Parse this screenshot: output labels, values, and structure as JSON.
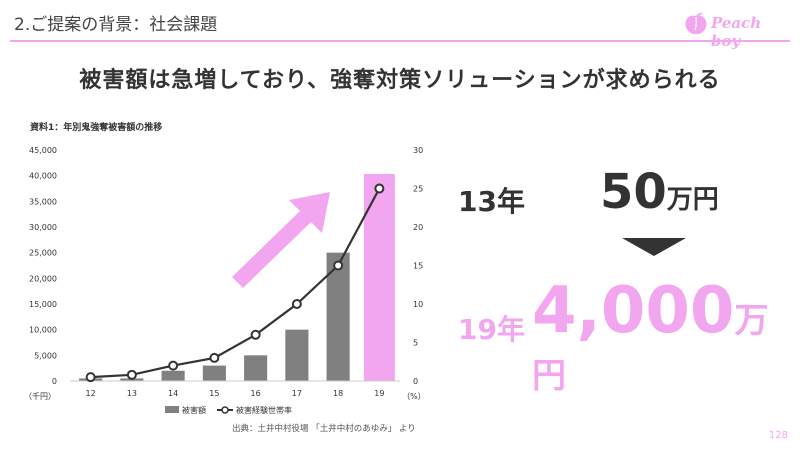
{
  "header": {
    "title": "2.ご提案の背景：社会課題",
    "logo_text": "Peach boy"
  },
  "headline": "被害額は急増しており、強奪対策ソリューションが求められる",
  "chart_title": "資料1：年別鬼強奪被害額の推移",
  "chart_data": {
    "type": "bar",
    "categories": [
      "12",
      "13",
      "14",
      "15",
      "16",
      "17",
      "18",
      "19"
    ],
    "series": [
      {
        "name": "被害額",
        "type": "bar",
        "values": [
          500,
          500,
          2000,
          3000,
          5000,
          10000,
          25000,
          40000
        ],
        "color": "#808080",
        "highlight_last_color": "#f3a6f0"
      },
      {
        "name": "被害経験世帯率",
        "type": "line",
        "axis": "right",
        "values": [
          0.5,
          0.8,
          2,
          3,
          6,
          10,
          15,
          25
        ],
        "color": "#333333"
      }
    ],
    "left_axis": {
      "ylim": [
        0,
        45000
      ],
      "ticks": [
        "45,000",
        "40,000",
        "35,000",
        "30,000",
        "25,000",
        "20,000",
        "15,000",
        "10,000",
        "5,000",
        "0"
      ],
      "unit": "（千円）"
    },
    "right_axis": {
      "ylim": [
        0,
        30
      ],
      "ticks": [
        "30",
        "25",
        "20",
        "15",
        "10",
        "5",
        "0"
      ],
      "unit": "（%）"
    },
    "legend": "bottom",
    "grid": false
  },
  "source": "出典：土井中村役場 「土井中村のあゆみ」 より",
  "comparison": {
    "before_year": "13年",
    "before_value": "50",
    "before_unit": "万円",
    "after_year": "19年",
    "after_value": "4,000",
    "after_unit": "万円"
  },
  "page_number": "128",
  "colors": {
    "accent": "#f3a6f0",
    "bar": "#808080",
    "text": "#333333"
  }
}
